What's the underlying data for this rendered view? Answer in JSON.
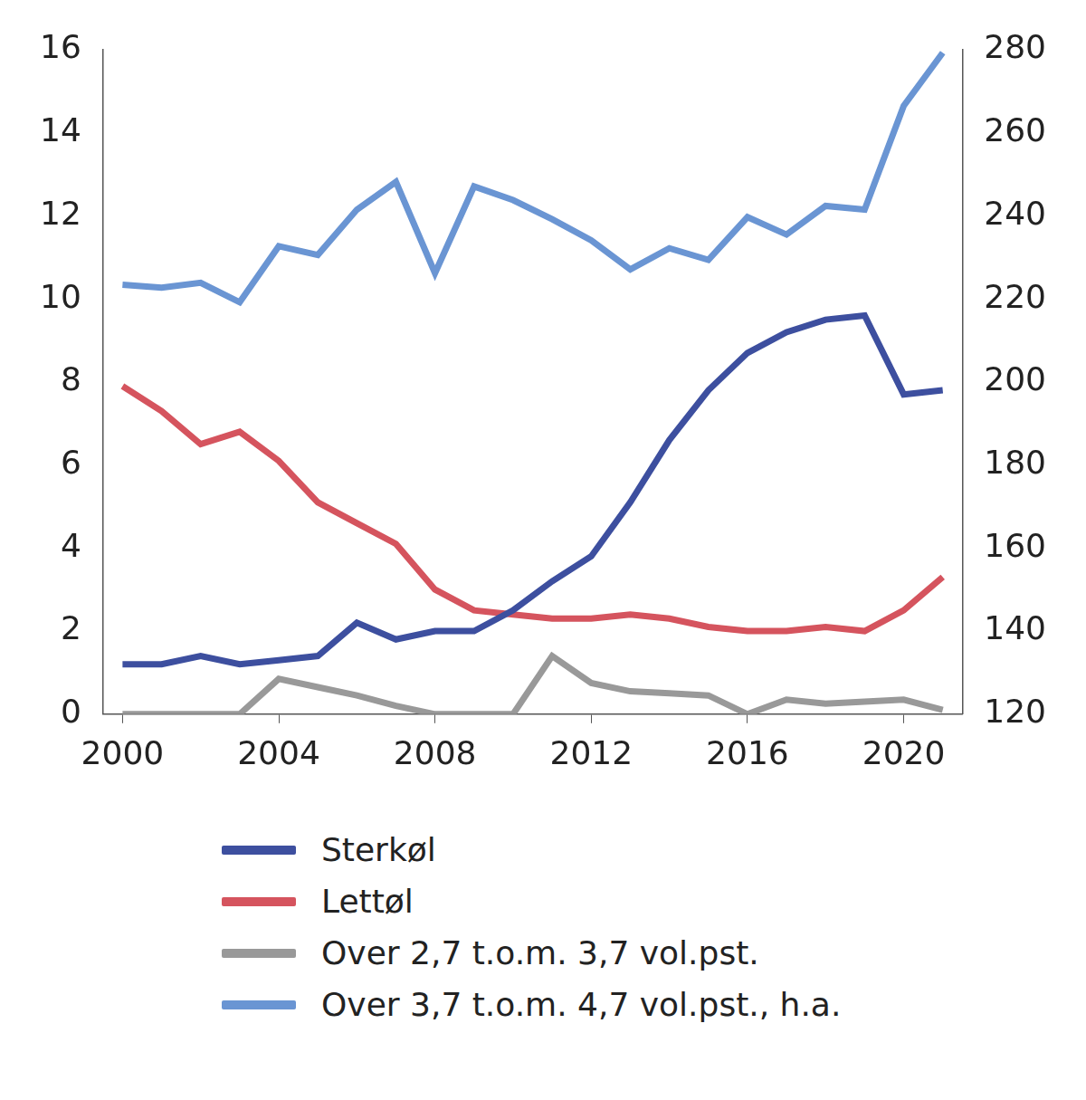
{
  "chart_data": {
    "type": "line",
    "x": [
      2000,
      2001,
      2002,
      2003,
      2004,
      2005,
      2006,
      2007,
      2008,
      2009,
      2010,
      2011,
      2012,
      2013,
      2014,
      2015,
      2016,
      2017,
      2018,
      2019,
      2020,
      2021
    ],
    "xlim": [
      1999.5,
      2021.5
    ],
    "xticks": [
      2000,
      2004,
      2008,
      2012,
      2016,
      2020
    ],
    "ylim": [
      0,
      16
    ],
    "yticks": [
      0,
      2,
      4,
      6,
      8,
      10,
      12,
      14,
      16
    ],
    "y2lim": [
      120,
      280
    ],
    "y2ticks": [
      120,
      140,
      160,
      180,
      200,
      220,
      240,
      260,
      280
    ],
    "grid": false,
    "legend": "bottom",
    "series": [
      {
        "name": "Sterkøl",
        "color": "#3d4f9f",
        "values": [
          1.2,
          1.2,
          1.4,
          1.2,
          1.3,
          1.4,
          2.2,
          1.8,
          2.0,
          2.0,
          2.5,
          3.2,
          3.8,
          5.1,
          6.6,
          7.8,
          8.7,
          9.2,
          9.5,
          9.6,
          7.7,
          7.8
        ]
      },
      {
        "name": "Lettøl",
        "color": "#d5545e",
        "values": [
          7.9,
          7.3,
          6.5,
          6.8,
          6.1,
          5.1,
          4.6,
          4.1,
          3.0,
          2.5,
          2.4,
          2.3,
          2.3,
          2.4,
          2.3,
          2.1,
          2.0,
          2.0,
          2.1,
          2.0,
          2.5,
          3.3
        ]
      },
      {
        "name": "Over 2,7 t.o.m. 3,7 vol.pst.",
        "color": "#999999",
        "values": [
          0.0,
          0.0,
          0.0,
          0.0,
          0.85,
          0.65,
          0.45,
          0.2,
          0.0,
          0.0,
          0.0,
          1.4,
          0.75,
          0.55,
          0.5,
          0.45,
          0.0,
          0.35,
          0.25,
          0.3,
          0.35,
          0.1
        ]
      },
      {
        "name": "Over 3,7 t.o.m. 4,7 vol.pst., h.a.",
        "color": "#6a95d3",
        "axis": "y2",
        "values": [
          223.4,
          222.7,
          223.9,
          219.2,
          232.7,
          230.6,
          241.5,
          248.2,
          226.2,
          247.1,
          243.8,
          239.2,
          234.1,
          227.1,
          232.2,
          229.4,
          239.7,
          235.5,
          242.4,
          241.5,
          266.5,
          279.3
        ]
      }
    ]
  }
}
